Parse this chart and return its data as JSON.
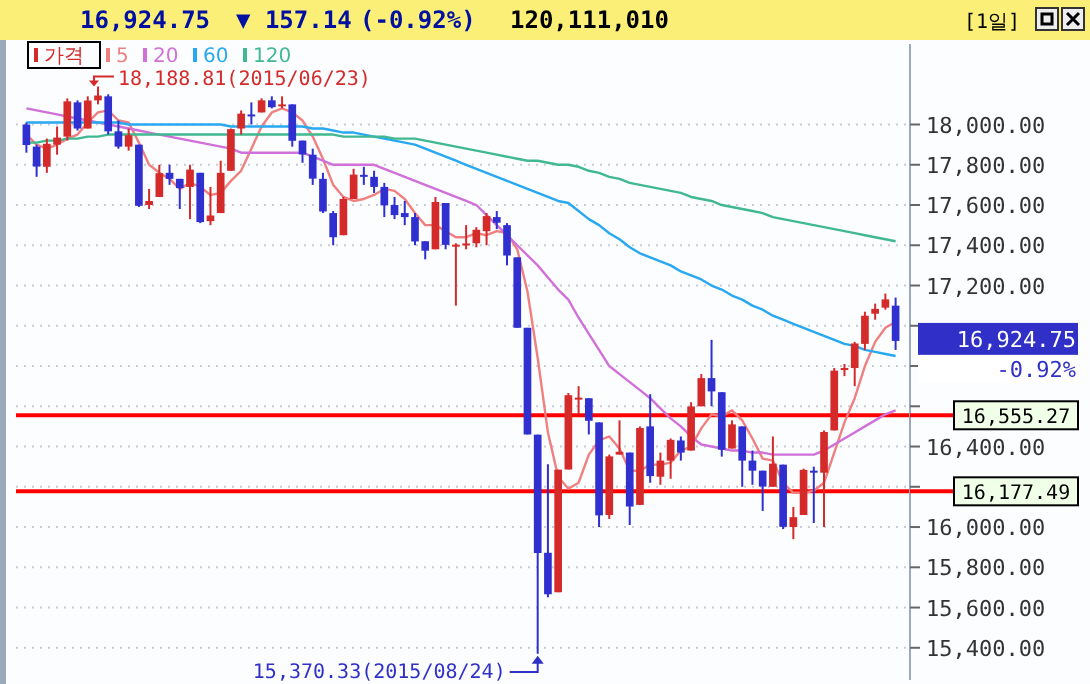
{
  "chart_data": {
    "type": "candlestick",
    "categories": [
      null,
      null,
      null,
      null,
      null,
      null,
      null,
      null,
      null,
      null,
      null,
      null,
      null,
      null,
      null,
      null,
      null,
      null,
      null,
      null,
      null,
      null,
      null,
      null,
      null,
      null,
      null,
      null,
      null,
      null,
      null,
      null,
      null,
      null,
      null,
      null,
      null,
      null,
      null,
      null,
      null,
      null,
      null,
      null,
      null,
      null,
      null,
      null,
      null,
      null,
      null,
      null,
      null,
      null,
      null,
      null,
      null,
      null,
      null,
      null,
      null,
      null,
      null,
      null,
      null,
      null,
      null,
      null,
      null,
      null,
      null,
      null,
      null,
      null,
      null,
      null,
      null,
      null,
      null,
      null,
      null,
      null,
      null,
      null,
      null,
      null
    ],
    "series": [
      {
        "name": "가격",
        "type": "candlestick",
        "color": "#d42a2a",
        "ohlc": [
          [
            18000,
            18010,
            17860,
            17898
          ],
          [
            17890,
            17900,
            17740,
            17791
          ],
          [
            17790,
            17930,
            17760,
            17904
          ],
          [
            17900,
            17990,
            17850,
            17935
          ],
          [
            17940,
            18130,
            17920,
            18115
          ],
          [
            18110,
            18120,
            17970,
            17980
          ],
          [
            17980,
            18140,
            17980,
            18119
          ],
          [
            18120,
            18188.81,
            18100,
            18144
          ],
          [
            18140,
            18150,
            17950,
            17966
          ],
          [
            17966,
            18020,
            17880,
            17890
          ],
          [
            17890,
            17980,
            17870,
            17947
          ],
          [
            17900,
            17900,
            17590,
            17596
          ],
          [
            17600,
            17680,
            17580,
            17620
          ],
          [
            17640,
            17800,
            17640,
            17758
          ],
          [
            17760,
            17800,
            17700,
            17730
          ],
          [
            17730,
            17730,
            17580,
            17684
          ],
          [
            17690,
            17800,
            17530,
            17776
          ],
          [
            17760,
            17760,
            17510,
            17515
          ],
          [
            17520,
            17690,
            17500,
            17548
          ],
          [
            17560,
            17820,
            17560,
            17760
          ],
          [
            17770,
            17980,
            17770,
            17977
          ],
          [
            17980,
            18070,
            17950,
            18054
          ],
          [
            18050,
            18110,
            18000,
            18050
          ],
          [
            18060,
            18130,
            18060,
            18120
          ],
          [
            18120,
            18140,
            18080,
            18086
          ],
          [
            18090,
            18140,
            18080,
            18100
          ],
          [
            18100,
            18100,
            17890,
            17919
          ],
          [
            17920,
            17920,
            17810,
            17851
          ],
          [
            17850,
            17880,
            17700,
            17731
          ],
          [
            17730,
            17760,
            17560,
            17568
          ],
          [
            17560,
            17570,
            17400,
            17440
          ],
          [
            17450,
            17640,
            17450,
            17630
          ],
          [
            17630,
            17780,
            17630,
            17751
          ],
          [
            17750,
            17790,
            17700,
            17745
          ],
          [
            17740,
            17770,
            17660,
            17690
          ],
          [
            17690,
            17710,
            17540,
            17598
          ],
          [
            17600,
            17640,
            17530,
            17550
          ],
          [
            17560,
            17620,
            17500,
            17540
          ],
          [
            17540,
            17560,
            17400,
            17419
          ],
          [
            17420,
            17420,
            17330,
            17373
          ],
          [
            17380,
            17640,
            17380,
            17615
          ],
          [
            17610,
            17610,
            17380,
            17402
          ],
          [
            17400,
            17410,
            17100,
            17403
          ],
          [
            17400,
            17500,
            17380,
            17409
          ],
          [
            17410,
            17490,
            17390,
            17477
          ],
          [
            17470,
            17560,
            17400,
            17545
          ],
          [
            17540,
            17570,
            17480,
            17512
          ],
          [
            17500,
            17510,
            17300,
            17349
          ],
          [
            17340,
            17340,
            16990,
            16990
          ],
          [
            16990,
            16990,
            16460,
            16460
          ],
          [
            16459,
            16459,
            15370.33,
            15871
          ],
          [
            15872,
            16312,
            15651,
            15666
          ],
          [
            15676,
            16285,
            15676,
            16285
          ],
          [
            16286,
            16666,
            16286,
            16655
          ],
          [
            16640,
            16700,
            16560,
            16643
          ],
          [
            16640,
            16640,
            16460,
            16528
          ],
          [
            16520,
            16520,
            16000,
            16058
          ],
          [
            16060,
            16360,
            16040,
            16351
          ],
          [
            16360,
            16530,
            16360,
            16374
          ],
          [
            16370,
            16370,
            16010,
            16102
          ],
          [
            16110,
            16500,
            16110,
            16492
          ],
          [
            16500,
            16660,
            16220,
            16253
          ],
          [
            16250,
            16370,
            16210,
            16330
          ],
          [
            16330,
            16440,
            16240,
            16433
          ],
          [
            16430,
            16450,
            16330,
            16370
          ],
          [
            16380,
            16620,
            16380,
            16599
          ],
          [
            16600,
            16760,
            16600,
            16740
          ],
          [
            16740,
            16930,
            16600,
            16674
          ],
          [
            16670,
            16670,
            16350,
            16384
          ],
          [
            16390,
            16530,
            16390,
            16510
          ],
          [
            16500,
            16500,
            16200,
            16330
          ],
          [
            16330,
            16380,
            16210,
            16280
          ],
          [
            16280,
            16280,
            16080,
            16201
          ],
          [
            16200,
            16450,
            16200,
            16315
          ],
          [
            16310,
            16310,
            15990,
            16001
          ],
          [
            16000,
            16100,
            15940,
            16049
          ],
          [
            16060,
            16290,
            16060,
            16284
          ],
          [
            16280,
            16300,
            16020,
            16272
          ],
          [
            16270,
            16480,
            16000,
            16472
          ],
          [
            16480,
            16790,
            16480,
            16777
          ],
          [
            16780,
            16810,
            16750,
            16790
          ],
          [
            16790,
            16920,
            16700,
            16912
          ],
          [
            16910,
            17070,
            16880,
            17050
          ],
          [
            17060,
            17110,
            17030,
            17084
          ],
          [
            17090,
            17160,
            17080,
            17131
          ],
          [
            17100,
            17140,
            16880,
            16924.75
          ]
        ],
        "colors": [
          "#3030d0",
          "#3030d0",
          "#d42a2a",
          "#d42a2a",
          "#d42a2a",
          "#3030d0",
          "#d42a2a",
          "#d42a2a",
          "#3030d0",
          "#3030d0",
          "#d42a2a",
          "#3030d0",
          "#d42a2a",
          "#d42a2a",
          "#3030d0",
          "#3030d0",
          "#d42a2a",
          "#3030d0",
          "#d42a2a",
          "#d42a2a",
          "#d42a2a",
          "#d42a2a",
          "#3030d0",
          "#d42a2a",
          "#3030d0",
          "#d42a2a",
          "#3030d0",
          "#3030d0",
          "#3030d0",
          "#3030d0",
          "#3030d0",
          "#d42a2a",
          "#d42a2a",
          "#3030d0",
          "#3030d0",
          "#3030d0",
          "#3030d0",
          "#3030d0",
          "#3030d0",
          "#3030d0",
          "#d42a2a",
          "#3030d0",
          "#d42a2a",
          "#d42a2a",
          "#d42a2a",
          "#d42a2a",
          "#3030d0",
          "#3030d0",
          "#3030d0",
          "#3030d0",
          "#3030d0",
          "#3030d0",
          "#d42a2a",
          "#d42a2a",
          "#d42a2a",
          "#3030d0",
          "#3030d0",
          "#d42a2a",
          "#d42a2a",
          "#3030d0",
          "#d42a2a",
          "#3030d0",
          "#d42a2a",
          "#d42a2a",
          "#3030d0",
          "#d42a2a",
          "#d42a2a",
          "#3030d0",
          "#3030d0",
          "#d42a2a",
          "#3030d0",
          "#3030d0",
          "#3030d0",
          "#d42a2a",
          "#3030d0",
          "#d42a2a",
          "#d42a2a",
          "#3030d0",
          "#d42a2a",
          "#d42a2a",
          "#d42a2a",
          "#d42a2a",
          "#d42a2a",
          "#d42a2a",
          "#d42a2a",
          "#3030d0"
        ]
      },
      {
        "name": "5",
        "type": "line",
        "color": "#f08080",
        "values": [
          17950,
          17900,
          17880,
          17900,
          17930,
          17950,
          18010,
          18060,
          18070,
          18020,
          18010,
          17910,
          17800,
          17760,
          17730,
          17680,
          17710,
          17690,
          17650,
          17660,
          17720,
          17770,
          17880,
          17990,
          18060,
          18080,
          18060,
          18020,
          17940,
          17830,
          17700,
          17640,
          17620,
          17630,
          17650,
          17680,
          17670,
          17630,
          17560,
          17500,
          17500,
          17470,
          17440,
          17440,
          17460,
          17450,
          17470,
          17460,
          17380,
          17170,
          16840,
          16470,
          16250,
          16190,
          16220,
          16360,
          16430,
          16450,
          16390,
          16280,
          16280,
          16310,
          16310,
          16320,
          16380,
          16400,
          16490,
          16560,
          16550,
          16580,
          16530,
          16440,
          16340,
          16330,
          16220,
          16170,
          16170,
          16180,
          16220,
          16370,
          16520,
          16640,
          16800,
          16920,
          16990,
          17020
        ]
      },
      {
        "name": "20",
        "type": "line",
        "color": "#d070d8",
        "values": [
          18080,
          18070,
          18060,
          18050,
          18040,
          18030,
          18020,
          18010,
          18000,
          17990,
          17980,
          17970,
          17960,
          17950,
          17940,
          17930,
          17920,
          17910,
          17900,
          17890,
          17880,
          17860,
          17860,
          17860,
          17860,
          17860,
          17860,
          17860,
          17840,
          17820,
          17800,
          17800,
          17800,
          17800,
          17800,
          17780,
          17760,
          17740,
          17720,
          17700,
          17680,
          17660,
          17640,
          17620,
          17600,
          17550,
          17500,
          17450,
          17400,
          17350,
          17300,
          17240,
          17180,
          17130,
          17040,
          16960,
          16880,
          16800,
          16760,
          16720,
          16680,
          16640,
          16590,
          16540,
          16500,
          16450,
          16410,
          16400,
          16390,
          16380,
          16380,
          16370,
          16370,
          16360,
          16360,
          16360,
          16360,
          16360,
          16380,
          16410,
          16440,
          16470,
          16500,
          16530,
          16560,
          16580
        ]
      },
      {
        "name": "60",
        "type": "line",
        "color": "#28a8f0",
        "values": [
          18010,
          18010,
          18010,
          18010,
          18010,
          18010,
          18010,
          18010,
          18010,
          18010,
          18000,
          18000,
          18000,
          18000,
          18000,
          18000,
          18000,
          18000,
          18000,
          18000,
          17990,
          17990,
          17990,
          17990,
          17990,
          17990,
          17990,
          17990,
          17980,
          17980,
          17970,
          17960,
          17960,
          17950,
          17940,
          17930,
          17920,
          17910,
          17900,
          17880,
          17860,
          17840,
          17820,
          17800,
          17780,
          17760,
          17740,
          17720,
          17700,
          17680,
          17660,
          17640,
          17620,
          17610,
          17570,
          17530,
          17500,
          17460,
          17430,
          17390,
          17360,
          17340,
          17320,
          17300,
          17270,
          17250,
          17230,
          17200,
          17180,
          17150,
          17130,
          17100,
          17080,
          17050,
          17030,
          17010,
          16990,
          16970,
          16950,
          16930,
          16910,
          16900,
          16880,
          16870,
          16860,
          16850
        ]
      },
      {
        "name": "120",
        "type": "line",
        "color": "#40b890",
        "values": [
          17910,
          17910,
          17920,
          17920,
          17930,
          17930,
          17940,
          17940,
          17950,
          17950,
          17950,
          17950,
          17950,
          17950,
          17950,
          17950,
          17950,
          17950,
          17950,
          17950,
          17950,
          17950,
          17950,
          17950,
          17950,
          17950,
          17950,
          17950,
          17950,
          17950,
          17950,
          17940,
          17940,
          17940,
          17940,
          17940,
          17930,
          17930,
          17930,
          17920,
          17910,
          17900,
          17890,
          17880,
          17870,
          17860,
          17850,
          17840,
          17830,
          17820,
          17820,
          17810,
          17800,
          17800,
          17790,
          17770,
          17760,
          17740,
          17730,
          17710,
          17700,
          17690,
          17680,
          17670,
          17660,
          17640,
          17630,
          17620,
          17600,
          17590,
          17580,
          17570,
          17560,
          17540,
          17530,
          17520,
          17510,
          17500,
          17490,
          17480,
          17470,
          17460,
          17450,
          17440,
          17430,
          17420
        ]
      }
    ],
    "ylim": [
      15240,
      18400
    ],
    "yticks": [
      {
        "value": 15400,
        "label": "15,400.00"
      },
      {
        "value": 15600,
        "label": "15,600.00"
      },
      {
        "value": 15800,
        "label": "15,800.00"
      },
      {
        "value": 16000,
        "label": "16,000.00"
      },
      {
        "value": 16200,
        "label": null
      },
      {
        "value": 16400,
        "label": "16,400.00"
      },
      {
        "value": 16600,
        "label": null
      },
      {
        "value": 16800,
        "label": null
      },
      {
        "value": 17000,
        "label": null
      },
      {
        "value": 17200,
        "label": "17,200.00"
      },
      {
        "value": 17400,
        "label": "17,400.00"
      },
      {
        "value": 17600,
        "label": "17,600.00"
      },
      {
        "value": 17800,
        "label": "17,800.00"
      },
      {
        "value": 18000,
        "label": "18,000.00"
      }
    ],
    "grid": "y",
    "legend": "top left",
    "ref_lines": [
      {
        "axis": "y",
        "value": 16555.27,
        "label": "16,555.27",
        "color": "#ff0000"
      },
      {
        "axis": "y",
        "value": 16177.49,
        "label": "16,177.49",
        "color": "#ff0000"
      }
    ],
    "annotations": [
      "18,188.81(2015/06/23)",
      "15,370.33(2015/08/24)",
      "16,924.75",
      "▼ 157.14",
      "(-0.92%)",
      "120,111,010",
      "[1일]",
      "16,924.75",
      "-0.92%"
    ]
  }
}
